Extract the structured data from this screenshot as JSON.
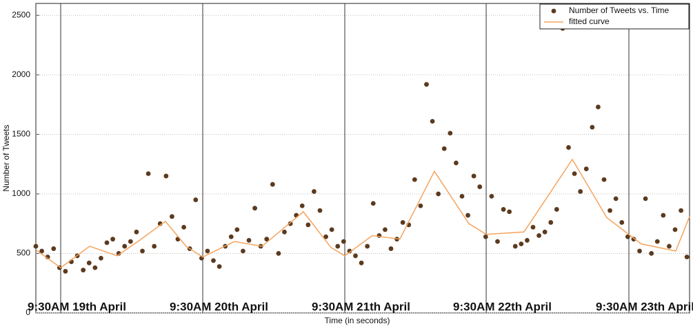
{
  "chart_data": {
    "type": "scatter",
    "xlabel": "Time (in seconds)",
    "ylabel": "Number of Tweets",
    "xlim": [
      0,
      397600
    ],
    "ylim": [
      0,
      2600
    ],
    "yticks": [
      0,
      500,
      1000,
      1500,
      2000,
      2500
    ],
    "grid": true,
    "legend": "upper right",
    "annotations": [
      {
        "text": "9:30AM 19th April",
        "x": 15100
      },
      {
        "text": "9:30AM 20th April",
        "x": 101500
      },
      {
        "text": "9:30AM 21th April",
        "x": 187900
      },
      {
        "text": "9:30AM 22th April",
        "x": 273900
      },
      {
        "text": "9:30AM 23th April",
        "x": 360700
      }
    ],
    "series": [
      {
        "name": "Number of Tweets vs. Time",
        "type": "scatter",
        "color": "#5c3a1e",
        "x": [
          0,
          3600,
          7200,
          10800,
          14400,
          18000,
          21600,
          25200,
          28800,
          32400,
          36000,
          39600,
          43200,
          46800,
          50400,
          54000,
          57600,
          61200,
          64800,
          68400,
          72000,
          75600,
          79200,
          82800,
          86400,
          90000,
          93600,
          97200,
          100800,
          104400,
          108000,
          111600,
          115200,
          118800,
          122400,
          126000,
          129600,
          133200,
          136800,
          140400,
          144000,
          147600,
          151200,
          154800,
          158400,
          162000,
          165600,
          169200,
          172800,
          176400,
          180000,
          183600,
          187200,
          190800,
          194400,
          198000,
          201600,
          205200,
          208800,
          212400,
          216000,
          219600,
          223200,
          226800,
          230400,
          234000,
          237600,
          241200,
          244800,
          248400,
          252000,
          255600,
          259200,
          262800,
          266400,
          270000,
          273600,
          277200,
          280800,
          284400,
          288000,
          291600,
          295200,
          298800,
          302400,
          306000,
          309600,
          313200,
          316800,
          320400,
          324000,
          327600,
          331200,
          334800,
          338400,
          342000,
          345600,
          349200,
          352800,
          356400,
          360000,
          363600,
          367200,
          370800,
          374400,
          378000,
          381600,
          385200,
          388800,
          392400,
          396000
        ],
        "values": [
          560,
          520,
          470,
          540,
          380,
          350,
          430,
          480,
          360,
          420,
          380,
          460,
          590,
          620,
          500,
          560,
          600,
          680,
          520,
          1170,
          560,
          750,
          1150,
          810,
          620,
          720,
          540,
          950,
          460,
          520,
          440,
          390,
          560,
          640,
          700,
          520,
          610,
          880,
          560,
          620,
          1080,
          500,
          680,
          750,
          820,
          900,
          740,
          1020,
          860,
          640,
          700,
          560,
          600,
          520,
          480,
          420,
          560,
          920,
          650,
          700,
          540,
          620,
          760,
          740,
          1120,
          900,
          1920,
          1610,
          1000,
          1380,
          1510,
          1260,
          980,
          820,
          1150,
          1060,
          640,
          980,
          600,
          870,
          850,
          560,
          580,
          610,
          720,
          650,
          680,
          760,
          870,
          2390,
          1390,
          1170,
          1020,
          1210,
          1560,
          1730,
          1120,
          860,
          960,
          760,
          640,
          620,
          520,
          960,
          500,
          600,
          820,
          560,
          700,
          860,
          470
        ]
      },
      {
        "name": "fitted curve",
        "type": "line",
        "color": "#f5a35c",
        "x": [
          0,
          15100,
          32700,
          49500,
          62100,
          78800,
          91400,
          101500,
          120800,
          137600,
          162700,
          179500,
          187900,
          204700,
          221400,
          242400,
          263400,
          273900,
          296900,
          326300,
          347300,
          368200,
          389200,
          397600
        ],
        "values": [
          530,
          380,
          560,
          480,
          600,
          770,
          560,
          470,
          600,
          560,
          850,
          550,
          480,
          650,
          620,
          1190,
          750,
          660,
          680,
          1290,
          800,
          580,
          520,
          810
        ]
      }
    ]
  }
}
